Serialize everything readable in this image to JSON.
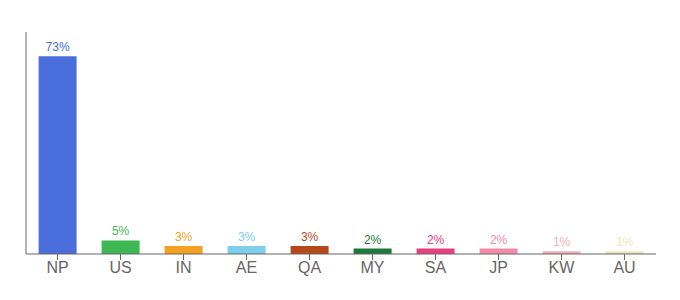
{
  "chart_data": {
    "type": "bar",
    "categories": [
      "NP",
      "US",
      "IN",
      "AE",
      "QA",
      "MY",
      "SA",
      "JP",
      "KW",
      "AU"
    ],
    "values": [
      73,
      5,
      3,
      3,
      3,
      2,
      2,
      2,
      1,
      1
    ],
    "value_labels": [
      "73%",
      "5%",
      "3%",
      "3%",
      "3%",
      "2%",
      "2%",
      "2%",
      "1%",
      "1%"
    ],
    "data_labels": true,
    "colors": [
      "#4a6fdc",
      "#3db855",
      "#f4a020",
      "#7ecfed",
      "#b5491c",
      "#1a7a3c",
      "#e84080",
      "#f48aaa",
      "#f0b0b8",
      "#e8e8c0"
    ],
    "ylim": [
      0,
      82
    ],
    "tick_labels": "x",
    "grid": false
  }
}
